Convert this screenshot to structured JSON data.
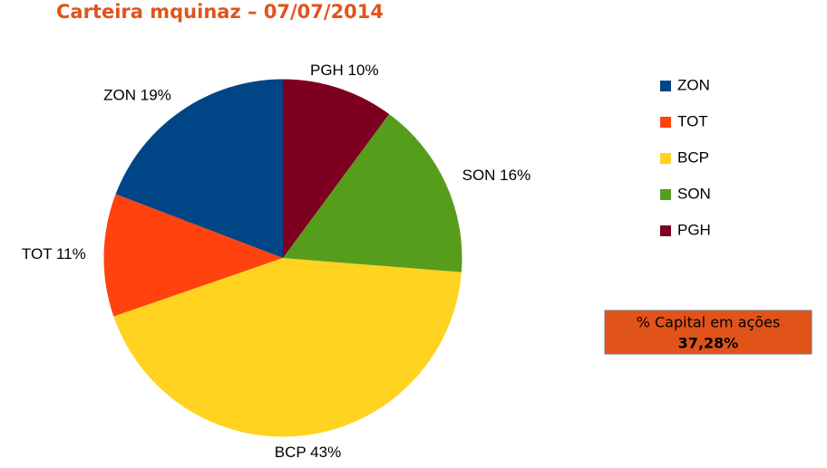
{
  "chart_data": {
    "type": "pie",
    "title": "Carteira mquinaz – 07/07/2014",
    "categories": [
      "ZON",
      "TOT",
      "BCP",
      "SON",
      "PGH"
    ],
    "values": [
      19,
      11,
      43,
      16,
      10
    ],
    "value_labels": [
      "ZON 19%",
      "TOT 11%",
      "BCP 43%",
      "SON 16%",
      "PGH 10%"
    ],
    "colors": [
      "#004586",
      "#ff420e",
      "#ffd320",
      "#579d1c",
      "#7e0021"
    ],
    "legend": "right",
    "annotation": {
      "label": "% Capital em ações",
      "value": "37,28%",
      "color": "#e0541a"
    }
  }
}
